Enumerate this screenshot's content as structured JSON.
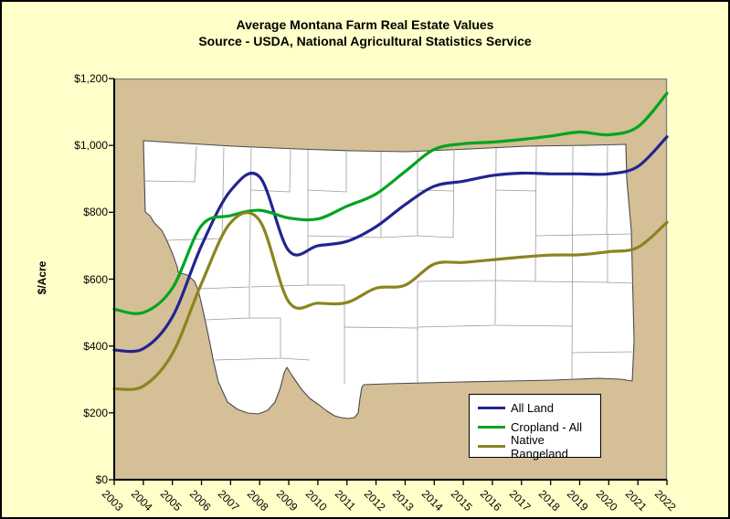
{
  "title": {
    "line1": "Average Montana Farm Real Estate Values",
    "line2": "Source - USDA, National Agricultural Statistics Service"
  },
  "y_axis": {
    "title": "$/Acre",
    "tick_labels": [
      "$0",
      "$200",
      "$400",
      "$600",
      "$800",
      "$1,000",
      "$1,200"
    ]
  },
  "x_axis": {
    "tick_labels": [
      "2003",
      "2004",
      "2005",
      "2006",
      "2007",
      "2008",
      "2009",
      "2010",
      "2011",
      "2012",
      "2013",
      "2014",
      "2015",
      "2016",
      "2017",
      "2018",
      "2019",
      "2020",
      "2021",
      "2022"
    ]
  },
  "colors": {
    "outer_background": "#FFFFC9",
    "plot_background": "#D4BF97",
    "state_fill": "#FFFFFF",
    "state_border": "#4A4A4A",
    "county_line": "#9B9B9B",
    "axis": "#000000",
    "plot_border": "#848484"
  },
  "chart_data": {
    "type": "line",
    "smooth": true,
    "title": "Average Montana Farm Real Estate Values",
    "subtitle": "Source - USDA, National Agricultural Statistics Service",
    "xlabel": "",
    "ylabel": "$/Acre",
    "ylim": [
      0,
      1200
    ],
    "y_ticks": [
      0,
      200,
      400,
      600,
      800,
      1000,
      1200
    ],
    "grid": false,
    "legend_position": "bottom-right",
    "background_note": "Montana county map watermark inside plot area",
    "x": [
      2003,
      2004,
      2005,
      2006,
      2007,
      2008,
      2009,
      2010,
      2011,
      2012,
      2013,
      2014,
      2015,
      2016,
      2017,
      2018,
      2019,
      2020,
      2021,
      2022
    ],
    "series": [
      {
        "name": "All Land",
        "color": "#22258E",
        "values": [
          388,
          392,
          487,
          700,
          865,
          906,
          685,
          700,
          713,
          757,
          823,
          878,
          893,
          910,
          917,
          915,
          915,
          915,
          937,
          1026
        ]
      },
      {
        "name": "Cropland - All",
        "color": "#00A41F",
        "values": [
          510,
          500,
          573,
          760,
          790,
          806,
          783,
          780,
          818,
          855,
          922,
          988,
          1005,
          1010,
          1018,
          1028,
          1040,
          1032,
          1056,
          1156
        ]
      },
      {
        "name": "Native Rangeland",
        "color": "#8B841F",
        "values": [
          272,
          280,
          377,
          587,
          769,
          775,
          532,
          528,
          530,
          573,
          582,
          645,
          650,
          658,
          666,
          672,
          673,
          682,
          695,
          770
        ]
      }
    ]
  }
}
